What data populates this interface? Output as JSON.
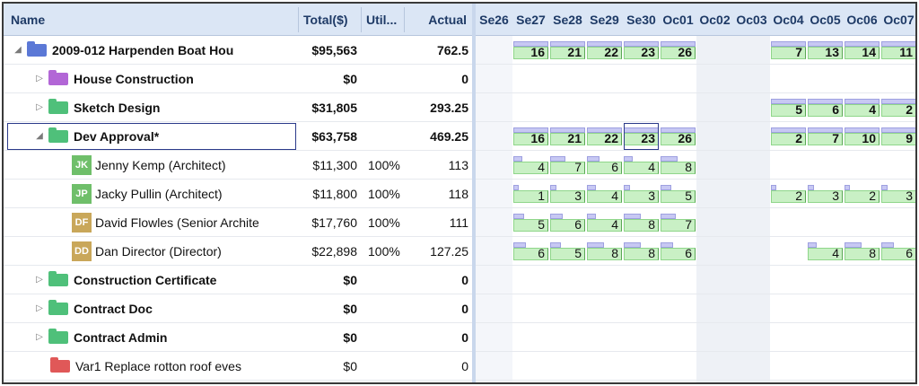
{
  "columns": {
    "name": "Name",
    "total": "Total($)",
    "util": "Util...",
    "actual": "Actual"
  },
  "dates": [
    "Se26",
    "Se27",
    "Se28",
    "Se29",
    "Se30",
    "Oc01",
    "Oc02",
    "Oc03",
    "Oc04",
    "Oc05",
    "Oc06",
    "Oc07"
  ],
  "rows": [
    {
      "name": "2009-012 Harpenden Boat Hou",
      "total": "$95,563",
      "util": "",
      "actual": "762.5",
      "bold": true,
      "level": 0,
      "expander": "◢",
      "icon": "folder-blue",
      "values": [
        "",
        "16",
        "21",
        "22",
        "23",
        "26",
        "",
        "",
        "7",
        "13",
        "14",
        "11"
      ]
    },
    {
      "name": "House Construction",
      "total": "$0",
      "util": "",
      "actual": "0",
      "bold": true,
      "level": 1,
      "expander": "▷",
      "icon": "folder-purple",
      "values": []
    },
    {
      "name": "Sketch Design",
      "total": "$31,805",
      "util": "",
      "actual": "293.25",
      "bold": true,
      "level": 1,
      "expander": "▷",
      "icon": "folder-green",
      "values": [
        "",
        "",
        "",
        "",
        "",
        "",
        "",
        "",
        "5",
        "6",
        "4",
        "2"
      ]
    },
    {
      "name": "Dev Approval*",
      "total": "$63,758",
      "util": "",
      "actual": "469.25",
      "bold": true,
      "level": 1,
      "expander": "◢",
      "icon": "folder-green",
      "values": [
        "",
        "16",
        "21",
        "22",
        "23",
        "26",
        "",
        "",
        "2",
        "7",
        "10",
        "9"
      ]
    },
    {
      "name": "Jenny Kemp (Architect)",
      "total": "$11,300",
      "util": "100%",
      "actual": "113",
      "bold": false,
      "level": 2,
      "initials": "JK",
      "avatar_color": "#6fbf6a",
      "values": [
        "",
        "4",
        "7",
        "6",
        "4",
        "8",
        "",
        "",
        "",
        "",
        "",
        ""
      ]
    },
    {
      "name": "Jacky Pullin (Architect)",
      "total": "$11,800",
      "util": "100%",
      "actual": "118",
      "bold": false,
      "level": 2,
      "initials": "JP",
      "avatar_color": "#6fbf6a",
      "values": [
        "",
        "1",
        "3",
        "4",
        "3",
        "5",
        "",
        "",
        "2",
        "3",
        "2",
        "3"
      ]
    },
    {
      "name": "David Flowles (Senior Archite",
      "total": "$17,760",
      "util": "100%",
      "actual": "111",
      "bold": false,
      "level": 2,
      "initials": "DF",
      "avatar_color": "#c9a75a",
      "values": [
        "",
        "5",
        "6",
        "4",
        "8",
        "7",
        "",
        "",
        "",
        "",
        "",
        ""
      ]
    },
    {
      "name": "Dan Director (Director)",
      "total": "$22,898",
      "util": "100%",
      "actual": "127.25",
      "bold": false,
      "level": 2,
      "initials": "DD",
      "avatar_color": "#c9a75a",
      "values": [
        "",
        "6",
        "5",
        "8",
        "8",
        "6",
        "",
        "",
        "",
        "4",
        "8",
        "6"
      ]
    },
    {
      "name": "Construction Certificate",
      "total": "$0",
      "util": "",
      "actual": "0",
      "bold": true,
      "level": 1,
      "expander": "▷",
      "icon": "folder-green",
      "values": []
    },
    {
      "name": "Contract Doc",
      "total": "$0",
      "util": "",
      "actual": "0",
      "bold": true,
      "level": 1,
      "expander": "▷",
      "icon": "folder-green",
      "values": []
    },
    {
      "name": "Contract Admin",
      "total": "$0",
      "util": "",
      "actual": "0",
      "bold": true,
      "level": 1,
      "expander": "▷",
      "icon": "folder-green",
      "values": []
    },
    {
      "name": "Var1 Replace rotton roof eves",
      "total": "$0",
      "util": "",
      "actual": "0",
      "bold": false,
      "level": 1,
      "icon": "folder-red",
      "values": []
    }
  ],
  "colors": {
    "folder-blue": "#5b78d6",
    "folder-purple": "#b266d6",
    "folder-green": "#4fc07a",
    "folder-red": "#e05858",
    "weekend-shade": "#eef1f6",
    "header-bg": "#dbe6f5"
  },
  "selected_cell": {
    "row": 3,
    "date": 4
  }
}
